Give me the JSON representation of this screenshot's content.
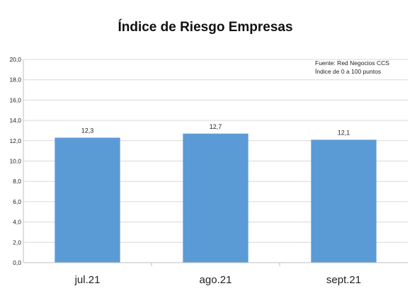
{
  "chart_data": {
    "type": "bar",
    "title": "Índice de Riesgo Empresas",
    "categories": [
      "jul.21",
      "ago.21",
      "sept.21"
    ],
    "values": [
      12.3,
      12.7,
      12.1
    ],
    "data_labels": [
      "12,3",
      "12,7",
      "12,1"
    ],
    "ylim": [
      0,
      20
    ],
    "y_ticks": [
      "0,0",
      "2,0",
      "4,0",
      "6,0",
      "8,0",
      "10,0",
      "12,0",
      "14,0",
      "16,0",
      "18,0",
      "20,0"
    ],
    "grid": true,
    "annotations": [
      "Fuente: Red Negocios CCS",
      "Índice de 0 a 100 puntos"
    ],
    "bar_color": "#5b9bd5",
    "grid_color": "#d9d9d9"
  }
}
